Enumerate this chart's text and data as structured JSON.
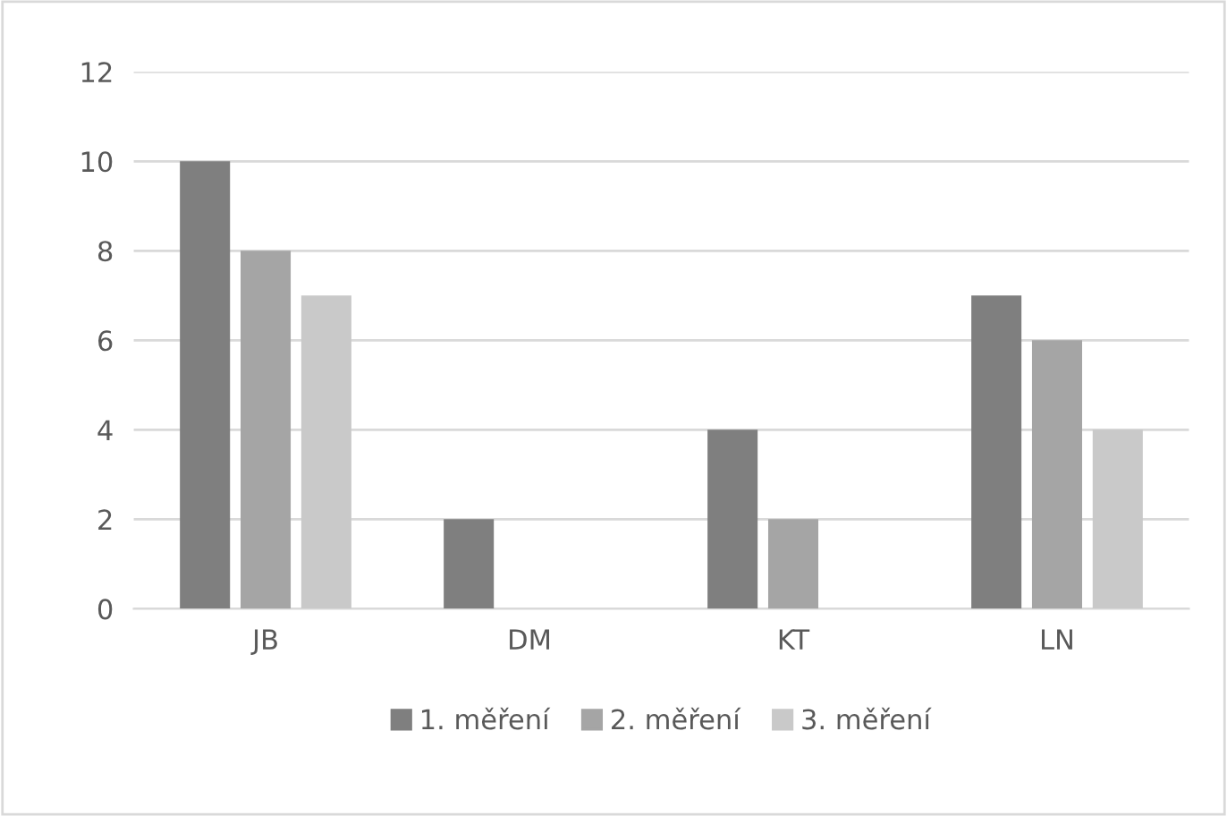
{
  "chart_data": {
    "type": "bar",
    "categories": [
      "JB",
      "DM",
      "KT",
      "LN"
    ],
    "series": [
      {
        "name": "1. měření",
        "color": "#7f7f7f",
        "values": [
          10,
          2,
          4,
          7
        ]
      },
      {
        "name": "2. měření",
        "color": "#a5a5a5",
        "values": [
          8,
          0,
          2,
          6
        ]
      },
      {
        "name": "3. měření",
        "color": "#c9c9c9",
        "values": [
          7,
          0,
          0,
          4
        ]
      }
    ],
    "ylim": [
      0,
      12
    ],
    "yticks": [
      0,
      2,
      4,
      6,
      8,
      10,
      12
    ],
    "grid": "y",
    "legend": "bottom"
  }
}
